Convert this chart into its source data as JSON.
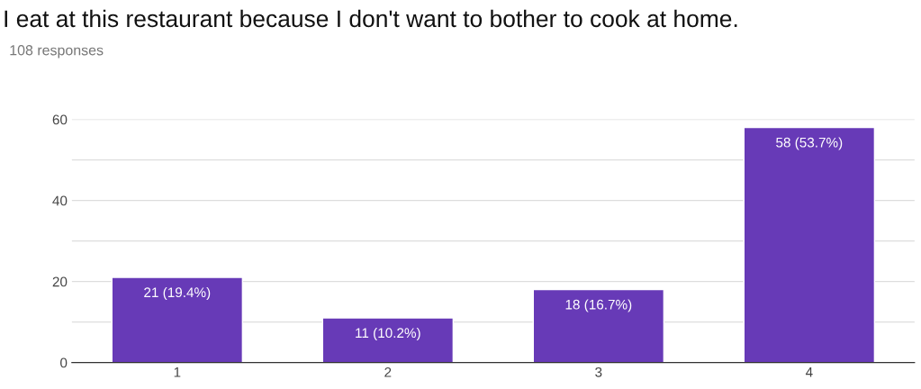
{
  "chart_data": {
    "type": "bar",
    "title": "I eat at this restaurant because I don't want to bother to cook at home.",
    "subtitle": "108 responses",
    "categories": [
      "1",
      "2",
      "3",
      "4"
    ],
    "values": [
      21,
      11,
      18,
      58
    ],
    "value_labels": [
      "21 (19.4%)",
      "11 (10.2%)",
      "18 (16.7%)",
      "58 (53.7%)"
    ],
    "color": "#673ab7",
    "ylim": [
      0,
      60
    ],
    "yticks": [
      0,
      {
        "value": 10,
        "label": null
      },
      20,
      {
        "value": 30,
        "label": null
      },
      40,
      {
        "value": 50,
        "label": null
      },
      60
    ],
    "grid": "y"
  }
}
